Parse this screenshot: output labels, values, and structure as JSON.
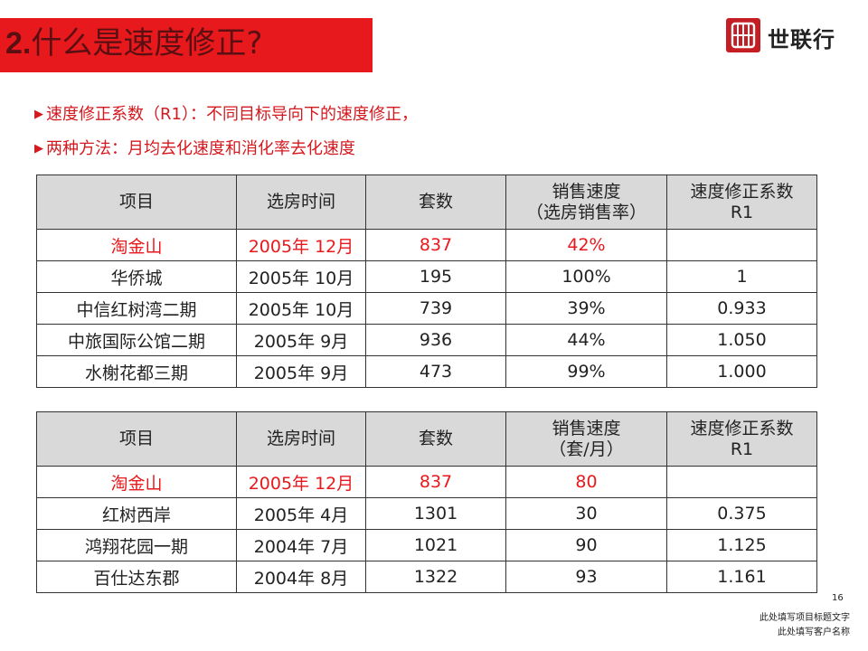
{
  "header": {
    "title_num": "2.",
    "title": "什么是速度修正?",
    "logo_text": "世联行",
    "logo_icon": "shilian-logo-icon",
    "accent": "#e8191c"
  },
  "bullets": [
    "速度修正系数（R1）：不同目标导向下的速度修正，",
    "两种方法：月均去化速度和消化率去化速度"
  ],
  "table1": {
    "headers": [
      "项目",
      "选房时间",
      "套数",
      "销售速度\n（选房销售率）",
      "速度修正系数\nR1"
    ],
    "rows": [
      [
        "淘金山",
        "2005年 12月",
        "837",
        "42%",
        ""
      ],
      [
        "华侨城",
        "2005年 10月",
        "195",
        "100%",
        "1"
      ],
      [
        "中信红树湾二期",
        "2005年 10月",
        "739",
        "39%",
        "0.933"
      ],
      [
        "中旅国际公馆二期",
        "2005年 9月",
        "936",
        "44%",
        "1.050"
      ],
      [
        "水榭花都三期",
        "2005年 9月",
        "473",
        "99%",
        "1.000"
      ]
    ]
  },
  "table2": {
    "headers": [
      "项目",
      "选房时间",
      "套数",
      "销售速度\n（套/月）",
      "速度修正系数\nR1"
    ],
    "rows": [
      [
        "淘金山",
        "2005年 12月",
        "837",
        "80",
        ""
      ],
      [
        "红树西岸",
        "2005年 4月",
        "1301",
        "30",
        "0.375"
      ],
      [
        "鸿翔花园一期",
        "2004年 7月",
        "1021",
        "90",
        "1.125"
      ],
      [
        "百仕达东郡",
        "2004年 8月",
        "1322",
        "93",
        "1.161"
      ]
    ]
  },
  "footer": {
    "page_number": "16",
    "line1": "此处填写项目标题文字",
    "line2": "此处填写客户名称"
  }
}
